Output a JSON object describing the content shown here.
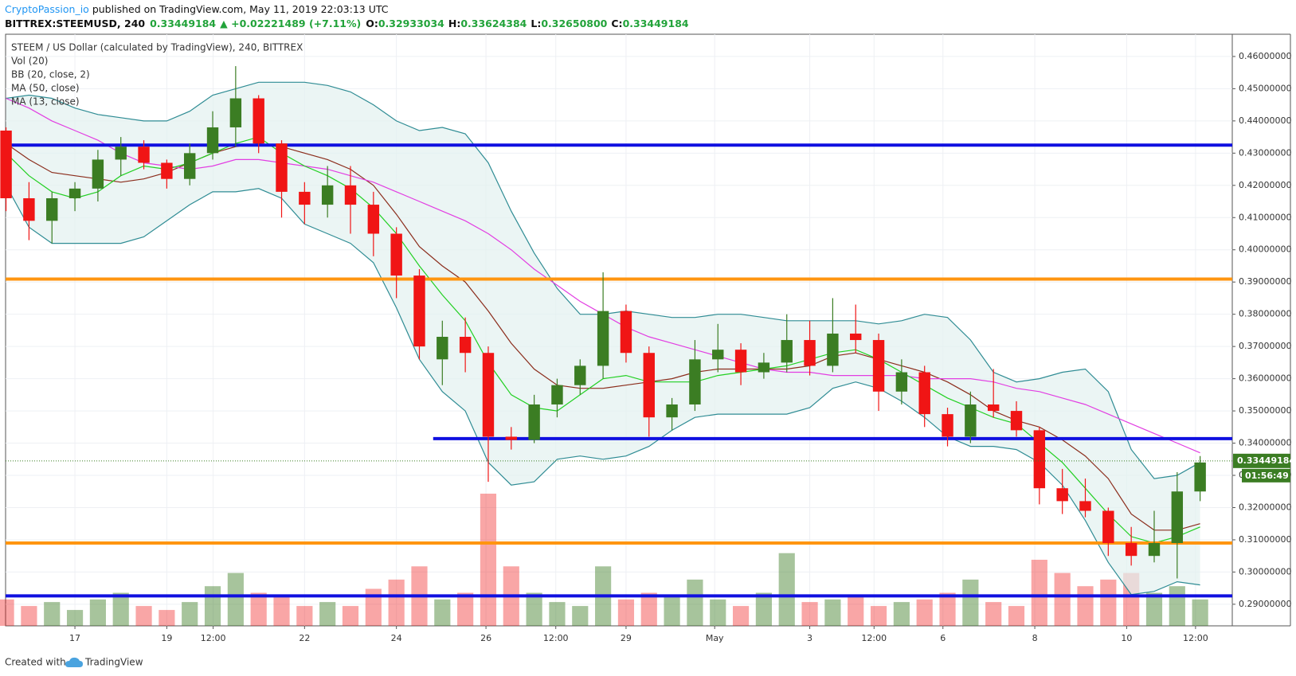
{
  "header": {
    "author": "CryptoPassion_io",
    "published": "published on TradingView.com, May 11, 2019 22:03:13 UTC",
    "symbol": "BITTREX:STEEMUSD, 240",
    "last": "0.33449184",
    "change": "▲ +0.02221489 (+7.11%)",
    "o_label": "O:",
    "o": "0.32933034",
    "h_label": "H:",
    "h": "0.33624384",
    "l_label": "L:",
    "l": "0.32650800",
    "c_label": "C:",
    "c": "0.33449184"
  },
  "footer": {
    "text": "Created with",
    "brand": "TradingView"
  },
  "chart_data": {
    "type": "candlestick",
    "title": "STEEM / US Dollar (calculated by TradingView), 240, BITTREX",
    "up_color": "#3b7d23",
    "down_color": "#f01515",
    "grid": true,
    "xlim": [
      -0.51,
      26.2
    ],
    "ylim": [
      0.2833,
      0.4669
    ],
    "xticks": [
      {
        "value": 1,
        "label": "17"
      },
      {
        "value": 3,
        "label": "19"
      },
      {
        "value": 4.01,
        "label": "12:00"
      },
      {
        "value": 6,
        "label": "22"
      },
      {
        "value": 8,
        "label": "24"
      },
      {
        "value": 9.95,
        "label": "26"
      },
      {
        "value": 11.47,
        "label": "12:00"
      },
      {
        "value": 13,
        "label": "29"
      },
      {
        "value": 14.93,
        "label": "May"
      },
      {
        "value": 17,
        "label": "3"
      },
      {
        "value": 18.4,
        "label": "12:00"
      },
      {
        "value": 19.9,
        "label": "6"
      },
      {
        "value": 21.9,
        "label": "8"
      },
      {
        "value": 23.9,
        "label": "10"
      },
      {
        "value": 25.4,
        "label": "12:00"
      }
    ],
    "yticks": [
      {
        "value": 0.29,
        "label": "0.29000000"
      },
      {
        "value": 0.3,
        "label": "0.30000000"
      },
      {
        "value": 0.31,
        "label": "0.31000000"
      },
      {
        "value": 0.32,
        "label": "0.32000000"
      },
      {
        "value": 0.33,
        "label": "0.33000000"
      },
      {
        "value": 0.34,
        "label": "0.34000000"
      },
      {
        "value": 0.35,
        "label": "0.35000000"
      },
      {
        "value": 0.36,
        "label": "0.36000000"
      },
      {
        "value": 0.37,
        "label": "0.37000000"
      },
      {
        "value": 0.38,
        "label": "0.38000000"
      },
      {
        "value": 0.39,
        "label": "0.39000000"
      },
      {
        "value": 0.4,
        "label": "0.40000000"
      },
      {
        "value": 0.41,
        "label": "0.41000000"
      },
      {
        "value": 0.42,
        "label": "0.42000000"
      },
      {
        "value": 0.43,
        "label": "0.43000000"
      },
      {
        "value": 0.44,
        "label": "0.44000000"
      },
      {
        "value": 0.45,
        "label": "0.45000000"
      },
      {
        "value": 0.46,
        "label": "0.46000000"
      }
    ],
    "x": [
      -0.5,
      0,
      0.5,
      1,
      1.5,
      2,
      2.5,
      3,
      3.5,
      4,
      4.5,
      5,
      5.5,
      6,
      6.5,
      7,
      7.5,
      8,
      8.5,
      9,
      9.5,
      10,
      10.5,
      11,
      11.5,
      12,
      12.5,
      13,
      13.5,
      14,
      14.5,
      15,
      15.5,
      16,
      16.5,
      17,
      17.5,
      18,
      18.5,
      19,
      19.5,
      20,
      20.5,
      21,
      21.5,
      22,
      22.5,
      23,
      23.5,
      24,
      24.5,
      25,
      25.5
    ],
    "open": [
      0.437,
      0.416,
      0.409,
      0.416,
      0.419,
      0.428,
      0.432,
      0.427,
      0.422,
      0.43,
      0.438,
      0.447,
      0.433,
      0.418,
      0.414,
      0.42,
      0.414,
      0.405,
      0.392,
      0.366,
      0.373,
      0.368,
      0.342,
      0.341,
      0.352,
      0.358,
      0.364,
      0.381,
      0.368,
      0.348,
      0.352,
      0.366,
      0.369,
      0.362,
      0.365,
      0.372,
      0.364,
      0.374,
      0.372,
      0.356,
      0.362,
      0.349,
      0.342,
      0.352,
      0.35,
      0.344,
      0.326,
      0.322,
      0.319,
      0.309,
      0.305,
      0.309,
      0.325
    ],
    "high": [
      0.438,
      0.421,
      0.418,
      0.421,
      0.431,
      0.435,
      0.434,
      0.428,
      0.433,
      0.443,
      0.457,
      0.448,
      0.434,
      0.421,
      0.426,
      0.426,
      0.418,
      0.407,
      0.394,
      0.378,
      0.379,
      0.37,
      0.345,
      0.355,
      0.36,
      0.366,
      0.393,
      0.383,
      0.37,
      0.354,
      0.372,
      0.377,
      0.371,
      0.368,
      0.38,
      0.378,
      0.385,
      0.383,
      0.374,
      0.366,
      0.364,
      0.351,
      0.356,
      0.363,
      0.353,
      0.345,
      0.332,
      0.329,
      0.32,
      0.314,
      0.319,
      0.331,
      0.336
    ],
    "low": [
      0.412,
      0.403,
      0.402,
      0.412,
      0.415,
      0.423,
      0.425,
      0.419,
      0.42,
      0.428,
      0.432,
      0.43,
      0.41,
      0.408,
      0.41,
      0.405,
      0.398,
      0.385,
      0.366,
      0.358,
      0.362,
      0.328,
      0.338,
      0.34,
      0.348,
      0.355,
      0.36,
      0.365,
      0.342,
      0.344,
      0.35,
      0.362,
      0.358,
      0.36,
      0.362,
      0.361,
      0.362,
      0.368,
      0.35,
      0.352,
      0.345,
      0.339,
      0.34,
      0.348,
      0.342,
      0.321,
      0.318,
      0.317,
      0.305,
      0.302,
      0.303,
      0.298,
      0.322
    ],
    "close": [
      0.416,
      0.409,
      0.416,
      0.419,
      0.428,
      0.432,
      0.427,
      0.422,
      0.43,
      0.438,
      0.447,
      0.433,
      0.418,
      0.414,
      0.42,
      0.414,
      0.405,
      0.392,
      0.37,
      0.373,
      0.368,
      0.342,
      0.341,
      0.352,
      0.358,
      0.364,
      0.381,
      0.368,
      0.348,
      0.352,
      0.366,
      0.369,
      0.362,
      0.365,
      0.372,
      0.364,
      0.374,
      0.372,
      0.356,
      0.362,
      0.349,
      0.342,
      0.352,
      0.35,
      0.344,
      0.326,
      0.322,
      0.319,
      0.309,
      0.305,
      0.309,
      0.325,
      0.334
    ],
    "volume": {
      "name": "Vol (20)",
      "ylim": [
        0,
        100
      ],
      "values": [
        20,
        15,
        18,
        12,
        20,
        25,
        15,
        12,
        18,
        30,
        40,
        25,
        22,
        15,
        18,
        15,
        28,
        35,
        45,
        20,
        25,
        100,
        45,
        25,
        18,
        15,
        45,
        20,
        25,
        22,
        35,
        20,
        15,
        25,
        55,
        18,
        20,
        22,
        15,
        18,
        20,
        25,
        35,
        18,
        15,
        50,
        40,
        30,
        35,
        40,
        25,
        30,
        20
      ]
    },
    "bollinger": {
      "name": "BB (20, close, 2)",
      "band_color": "#2f8c94",
      "basis_color": "#8b2d1c",
      "fill": "#e3f1ef",
      "upper": [
        0.447,
        0.448,
        0.447,
        0.444,
        0.442,
        0.441,
        0.44,
        0.44,
        0.443,
        0.448,
        0.45,
        0.452,
        0.452,
        0.452,
        0.451,
        0.449,
        0.445,
        0.44,
        0.437,
        0.438,
        0.436,
        0.427,
        0.412,
        0.399,
        0.388,
        0.38,
        0.38,
        0.381,
        0.38,
        0.379,
        0.379,
        0.38,
        0.38,
        0.379,
        0.378,
        0.378,
        0.378,
        0.378,
        0.377,
        0.378,
        0.38,
        0.379,
        0.372,
        0.362,
        0.359,
        0.36,
        0.362,
        0.363,
        0.356,
        0.338,
        0.329,
        0.33,
        0.334
      ],
      "basis": [
        0.433,
        0.428,
        0.424,
        0.423,
        0.422,
        0.421,
        0.422,
        0.424,
        0.427,
        0.43,
        0.432,
        0.433,
        0.432,
        0.43,
        0.428,
        0.425,
        0.42,
        0.411,
        0.401,
        0.395,
        0.39,
        0.381,
        0.371,
        0.363,
        0.358,
        0.357,
        0.357,
        0.358,
        0.359,
        0.36,
        0.362,
        0.363,
        0.363,
        0.363,
        0.363,
        0.364,
        0.367,
        0.368,
        0.366,
        0.364,
        0.362,
        0.359,
        0.355,
        0.35,
        0.347,
        0.345,
        0.341,
        0.336,
        0.329,
        0.318,
        0.313,
        0.313,
        0.315
      ],
      "lower": [
        0.42,
        0.407,
        0.402,
        0.402,
        0.402,
        0.402,
        0.404,
        0.409,
        0.414,
        0.418,
        0.418,
        0.419,
        0.416,
        0.408,
        0.405,
        0.402,
        0.396,
        0.382,
        0.366,
        0.356,
        0.35,
        0.334,
        0.327,
        0.328,
        0.335,
        0.336,
        0.335,
        0.336,
        0.339,
        0.344,
        0.348,
        0.349,
        0.349,
        0.349,
        0.349,
        0.351,
        0.357,
        0.359,
        0.357,
        0.353,
        0.348,
        0.342,
        0.339,
        0.339,
        0.338,
        0.334,
        0.327,
        0.316,
        0.303,
        0.293,
        0.294,
        0.297,
        0.296
      ]
    },
    "series": [
      {
        "name": "MA (50, close)",
        "color": "#e23ee2",
        "values": [
          0.447,
          0.444,
          0.44,
          0.437,
          0.434,
          0.43,
          0.427,
          0.426,
          0.425,
          0.426,
          0.428,
          0.428,
          0.427,
          0.426,
          0.425,
          0.423,
          0.421,
          0.418,
          0.415,
          0.412,
          0.409,
          0.405,
          0.4,
          0.394,
          0.389,
          0.384,
          0.38,
          0.376,
          0.373,
          0.371,
          0.369,
          0.367,
          0.365,
          0.363,
          0.362,
          0.362,
          0.361,
          0.361,
          0.361,
          0.361,
          0.36,
          0.36,
          0.36,
          0.359,
          0.357,
          0.356,
          0.354,
          0.352,
          0.349,
          0.346,
          0.343,
          0.34,
          0.337
        ]
      },
      {
        "name": "MA (13, close)",
        "color": "#22d022",
        "values": [
          0.43,
          0.423,
          0.418,
          0.416,
          0.418,
          0.423,
          0.426,
          0.425,
          0.427,
          0.43,
          0.433,
          0.435,
          0.43,
          0.426,
          0.423,
          0.419,
          0.413,
          0.405,
          0.395,
          0.386,
          0.378,
          0.365,
          0.355,
          0.351,
          0.35,
          0.355,
          0.36,
          0.361,
          0.359,
          0.359,
          0.359,
          0.361,
          0.362,
          0.363,
          0.364,
          0.366,
          0.368,
          0.369,
          0.366,
          0.362,
          0.358,
          0.354,
          0.351,
          0.348,
          0.346,
          0.34,
          0.334,
          0.326,
          0.318,
          0.311,
          0.309,
          0.311,
          0.314
        ]
      }
    ],
    "levels": [
      {
        "value": 0.4325,
        "color": "#1010e0"
      },
      {
        "value": 0.3909,
        "color": "#ff9510"
      },
      {
        "value": 0.3414,
        "color": "#1010e0",
        "from": 8.8
      },
      {
        "value": 0.309,
        "color": "#ff9510"
      },
      {
        "value": 0.2926,
        "color": "#1010e0"
      }
    ],
    "last_price": {
      "value": 0.33449184,
      "label": "0.33449184",
      "countdown": "01:56:49",
      "color": "#3b7d23"
    }
  }
}
